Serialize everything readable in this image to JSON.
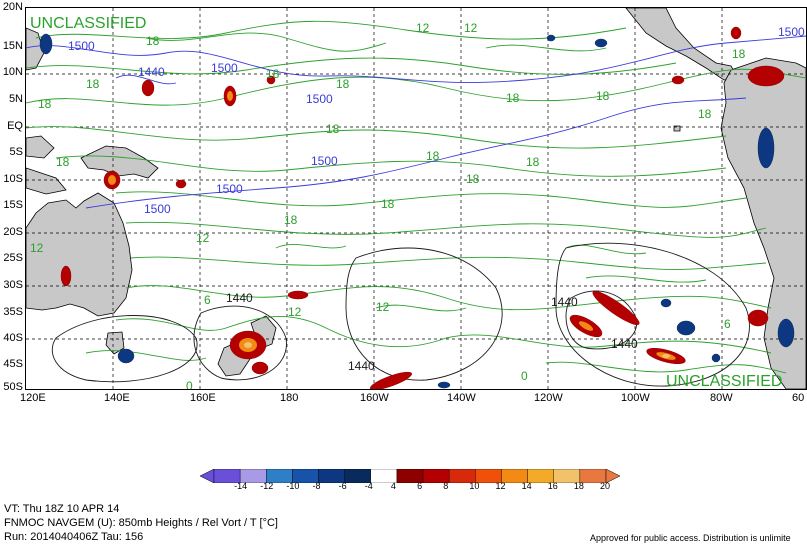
{
  "map": {
    "watermark_top": "UNCLASSIFIED",
    "watermark_bottom": "UNCLASSIFIED",
    "lat_labels": [
      "20N",
      "15N",
      "10N",
      "5N",
      "EQ",
      "5S",
      "10S",
      "15S",
      "20S",
      "25S",
      "30S",
      "35S",
      "40S",
      "45S",
      "50S"
    ],
    "lon_labels": [
      "120E",
      "140E",
      "160E",
      "180",
      "160W",
      "140W",
      "120W",
      "100W",
      "80W",
      "60"
    ],
    "height_labels": [
      "1500",
      "1440",
      "1500",
      "1500",
      "1500",
      "1500",
      "1500",
      "1440",
      "1440",
      "1440",
      "1440",
      "1500"
    ],
    "temp_labels": [
      "18",
      "18",
      "18",
      "18",
      "18",
      "12",
      "12",
      "18",
      "18",
      "18",
      "18",
      "18",
      "18",
      "18",
      "18",
      "18",
      "12",
      "12",
      "6",
      "12",
      "12",
      "0",
      "0",
      "6",
      "18",
      "18"
    ],
    "colors": {
      "land": "#c8c8c8",
      "temp_contour": "#2ca02c",
      "height_contour": "#1a1a1a",
      "height_1500": "#3b3bdc",
      "vort_pos": "#b40000",
      "vort_neg": "#0a3c8c"
    }
  },
  "colorbar": {
    "labels": [
      "-14",
      "-12",
      "-10",
      "-8",
      "-6",
      "-4",
      "4",
      "6",
      "8",
      "10",
      "12",
      "14",
      "16",
      "18",
      "20"
    ],
    "colors": [
      "#6a4fd8",
      "#a99ae8",
      "#2f7fc6",
      "#1753a8",
      "#0d3780",
      "#082a5c",
      "#ffffff",
      "#8c0000",
      "#b40000",
      "#d82a0a",
      "#f0500a",
      "#f28a14",
      "#f2aa28",
      "#f2c26a",
      "#e87840"
    ]
  },
  "footer": {
    "valid_time": "VT: Thu  18Z  10 APR  14",
    "product": "FNMOC NAVGEM (U): 850mb   Heights / Rel Vort / T [°C]",
    "run": "Run: 2014040406Z  Tau: 156",
    "disclaimer": "Approved for public access. Distribution is unlimite"
  }
}
